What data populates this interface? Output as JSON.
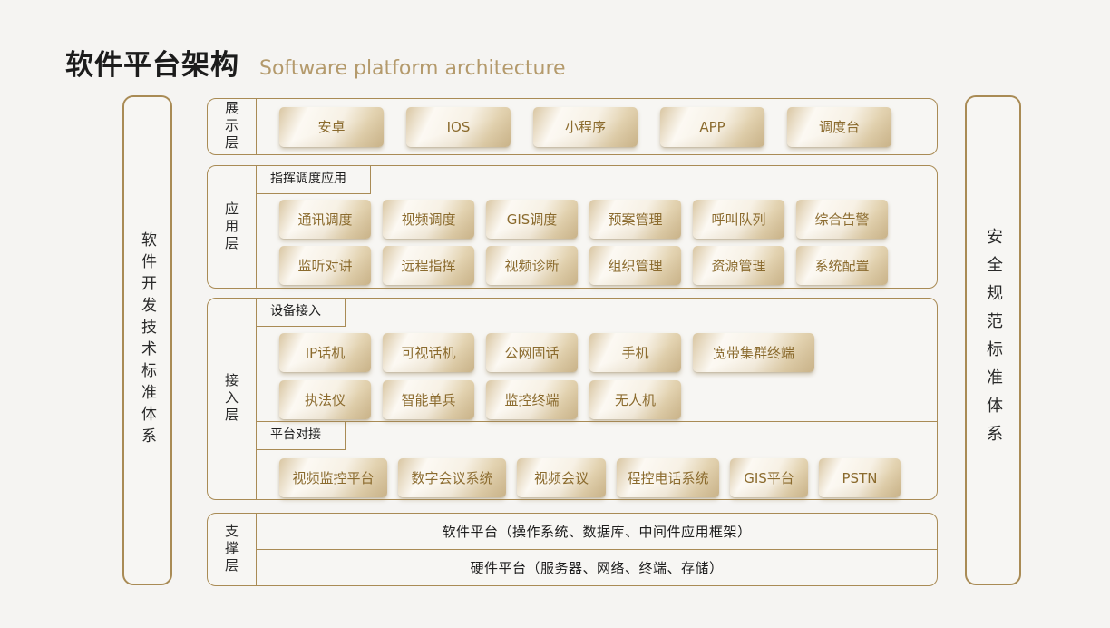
{
  "title": {
    "zh": "软件平台架构",
    "en": "Software platform architecture"
  },
  "side_bars": {
    "left": "软件开发技术标准体系",
    "right": "安全规范标准体系"
  },
  "layers": {
    "presentation": {
      "label": "展示层",
      "buttons": [
        "安卓",
        "IOS",
        "小程序",
        "APP",
        "调度台"
      ]
    },
    "application": {
      "label": "应用层",
      "group_label": "指挥调度应用",
      "rows": [
        [
          "通讯调度",
          "视频调度",
          "GIS调度",
          "预案管理",
          "呼叫队列",
          "综合告警"
        ],
        [
          "监听对讲",
          "远程指挥",
          "视频诊断",
          "组织管理",
          "资源管理",
          "系统配置"
        ]
      ]
    },
    "access": {
      "label": "接入层",
      "device_group_label": "设备接入",
      "device_rows": [
        [
          "IP话机",
          "可视话机",
          "公网固话",
          "手机",
          "宽带集群终端"
        ],
        [
          "执法仪",
          "智能单兵",
          "监控终端",
          "无人机"
        ]
      ],
      "platform_group_label": "平台对接",
      "platform_buttons": [
        "视频监控平台",
        "数字会议系统",
        "视频会议",
        "程控电话系统",
        "GIS平台",
        "PSTN"
      ]
    },
    "support": {
      "label": "支撑层",
      "rows": [
        "软件平台（操作系统、数据库、中间件应用框架）",
        "硬件平台（服务器、网络、终端、存储）"
      ]
    }
  },
  "colors": {
    "border_gold": "#a98b55",
    "chip_text_gold": "#8b6b2e",
    "title_accent": "#b49a6c",
    "page_background": "#f5f4f2"
  }
}
